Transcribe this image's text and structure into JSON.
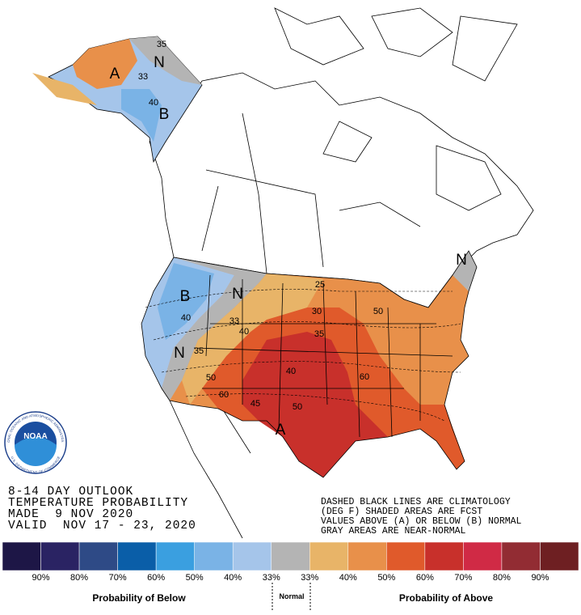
{
  "title_block": [
    "8-14 DAY OUTLOOK",
    "TEMPERATURE PROBABILITY",
    "MADE  9 NOV 2020",
    "VALID  NOV 17 - 23, 2020"
  ],
  "notes": [
    "DASHED BLACK LINES ARE CLIMATOLOGY",
    "(DEG F) SHADED AREAS ARE FCST",
    "VALUES ABOVE (A) OR BELOW (B) NORMAL",
    "GRAY AREAS ARE NEAR-NORMAL"
  ],
  "logo": {
    "name": "NOAA",
    "ring_top": "NATIONAL OCEANIC AND ATMOSPHERIC ADMINISTRATION",
    "ring_bottom": "U.S. DEPARTMENT OF COMMERCE"
  },
  "map_labels": [
    "A",
    "N",
    "B",
    "33",
    "40",
    "35",
    "B",
    "N",
    "40",
    "33",
    "40",
    "N",
    "35",
    "50",
    "60",
    "45",
    "40",
    "50",
    "A",
    "35",
    "30",
    "25",
    "50",
    "60",
    "N"
  ],
  "legend": {
    "colors": [
      "#1d1646",
      "#2a2363",
      "#2e4a86",
      "#0a5ea8",
      "#3a9fe0",
      "#7ab3e6",
      "#a5c5ea",
      "#b4b4b4",
      "#e8b468",
      "#e8904a",
      "#e05a2b",
      "#c8302b",
      "#d02a45",
      "#922c33",
      "#6e1f22"
    ],
    "tick_labels": [
      "90%",
      "80%",
      "70%",
      "60%",
      "50%",
      "40%",
      "33%",
      "33%",
      "40%",
      "50%",
      "60%",
      "70%",
      "80%",
      "90%"
    ],
    "below": "Probability of Below",
    "normal": "Normal",
    "above": "Probability of Above"
  }
}
